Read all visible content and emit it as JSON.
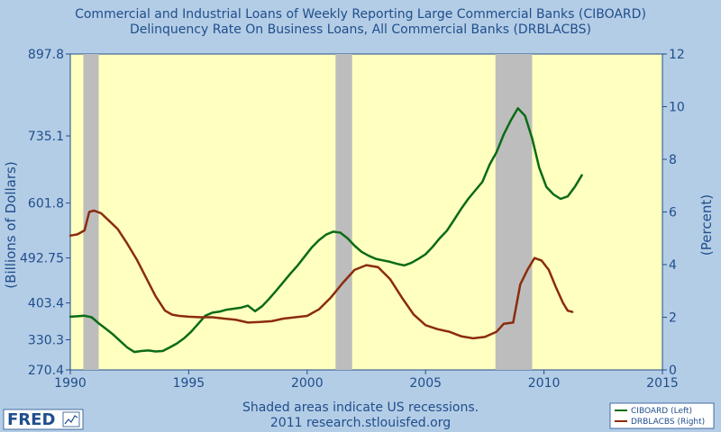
{
  "chart_data": {
    "type": "line",
    "title": [
      "Commercial and Industrial Loans of Weekly Reporting Large Commercial Banks (CIBOARD)",
      "Delinquency Rate On Business Loans, All Commercial Banks (DRBLACBS)"
    ],
    "xlabel": "",
    "ylabel_left": "(Billions of Dollars)",
    "ylabel_right": "(Percent)",
    "xlim": [
      1990,
      2015
    ],
    "x_ticks": [
      "1990",
      "1995",
      "2000",
      "2005",
      "2010",
      "2015"
    ],
    "ylim_left": [
      270.4,
      897.8
    ],
    "y_ticks_left": [
      "270.4",
      "330.3",
      "403.4",
      "492.75",
      "601.8",
      "735.1",
      "897.8"
    ],
    "ylim_right": [
      0,
      12
    ],
    "y_ticks_right": [
      "0",
      "2",
      "4",
      "6",
      "8",
      "10",
      "12"
    ],
    "grid": false,
    "recessions": [
      [
        1990.55,
        1991.2
      ],
      [
        2001.2,
        2001.9
      ],
      [
        2007.95,
        2009.5
      ]
    ],
    "series": [
      {
        "name": "CIBOARD (Left)",
        "axis": "left",
        "color": "#0b6b16",
        "x": [
          1990.0,
          1990.3,
          1990.6,
          1990.9,
          1991.2,
          1991.5,
          1991.8,
          1992.1,
          1992.4,
          1992.7,
          1993.0,
          1993.3,
          1993.6,
          1993.9,
          1994.2,
          1994.5,
          1994.8,
          1995.1,
          1995.4,
          1995.7,
          1996.0,
          1996.3,
          1996.6,
          1996.9,
          1997.2,
          1997.5,
          1997.8,
          1998.1,
          1998.4,
          1998.7,
          1999.0,
          1999.3,
          1999.6,
          1999.9,
          2000.2,
          2000.5,
          2000.8,
          2001.1,
          2001.4,
          2001.7,
          2002.0,
          2002.3,
          2002.6,
          2002.9,
          2003.2,
          2003.5,
          2003.8,
          2004.1,
          2004.4,
          2004.7,
          2005.0,
          2005.3,
          2005.6,
          2005.9,
          2006.2,
          2006.5,
          2006.8,
          2007.1,
          2007.4,
          2007.7,
          2008.0,
          2008.3,
          2008.6,
          2008.9,
          2009.2,
          2009.5,
          2009.8,
          2010.1,
          2010.4,
          2010.7,
          2011.0,
          2011.3,
          2011.6
        ],
        "y": [
          376,
          377,
          378,
          375,
          363,
          352,
          341,
          328,
          315,
          306,
          308,
          309,
          307,
          308,
          315,
          323,
          333,
          346,
          362,
          378,
          384,
          386,
          390,
          392,
          394,
          398,
          387,
          397,
          412,
          428,
          445,
          462,
          478,
          496,
          514,
          528,
          539,
          545,
          543,
          532,
          517,
          505,
          497,
          491,
          488,
          485,
          481,
          478,
          483,
          491,
          500,
          515,
          532,
          547,
          568,
          590,
          610,
          627,
          644,
          678,
          703,
          738,
          766,
          790,
          775,
          730,
          672,
          634,
          619,
          610,
          615,
          634,
          657
        ]
      },
      {
        "name": "DRBLACBS (Right)",
        "axis": "right",
        "color": "#8b2c0c",
        "x": [
          1990.0,
          1990.3,
          1990.6,
          1990.8,
          1991.0,
          1991.3,
          1991.6,
          1992.0,
          1992.4,
          1992.8,
          1993.2,
          1993.6,
          1994.0,
          1994.3,
          1994.6,
          1995.0,
          1995.5,
          1996.0,
          1996.5,
          1997.0,
          1997.5,
          1998.0,
          1998.5,
          1999.0,
          1999.5,
          2000.0,
          2000.5,
          2001.0,
          2001.5,
          2002.0,
          2002.5,
          2003.0,
          2003.5,
          2004.0,
          2004.5,
          2005.0,
          2005.5,
          2006.0,
          2006.5,
          2007.0,
          2007.5,
          2008.0,
          2008.3,
          2008.7,
          2009.0,
          2009.3,
          2009.6,
          2009.9,
          2010.2,
          2010.5,
          2010.8,
          2011.0,
          2011.2
        ],
        "y": [
          5.1,
          5.15,
          5.3,
          6.0,
          6.05,
          5.95,
          5.7,
          5.35,
          4.8,
          4.2,
          3.5,
          2.8,
          2.25,
          2.1,
          2.05,
          2.02,
          2.0,
          2.0,
          1.95,
          1.9,
          1.8,
          1.82,
          1.85,
          1.95,
          2.0,
          2.05,
          2.3,
          2.75,
          3.3,
          3.8,
          3.98,
          3.9,
          3.45,
          2.75,
          2.1,
          1.7,
          1.55,
          1.45,
          1.28,
          1.2,
          1.25,
          1.45,
          1.75,
          1.8,
          3.25,
          3.8,
          4.25,
          4.15,
          3.8,
          3.15,
          2.55,
          2.25,
          2.2
        ]
      }
    ]
  },
  "footer": {
    "note_line1": "Shaded areas indicate US recessions.",
    "note_line2": "2011 research.stlouisfed.org",
    "logo_text": "FRED"
  }
}
